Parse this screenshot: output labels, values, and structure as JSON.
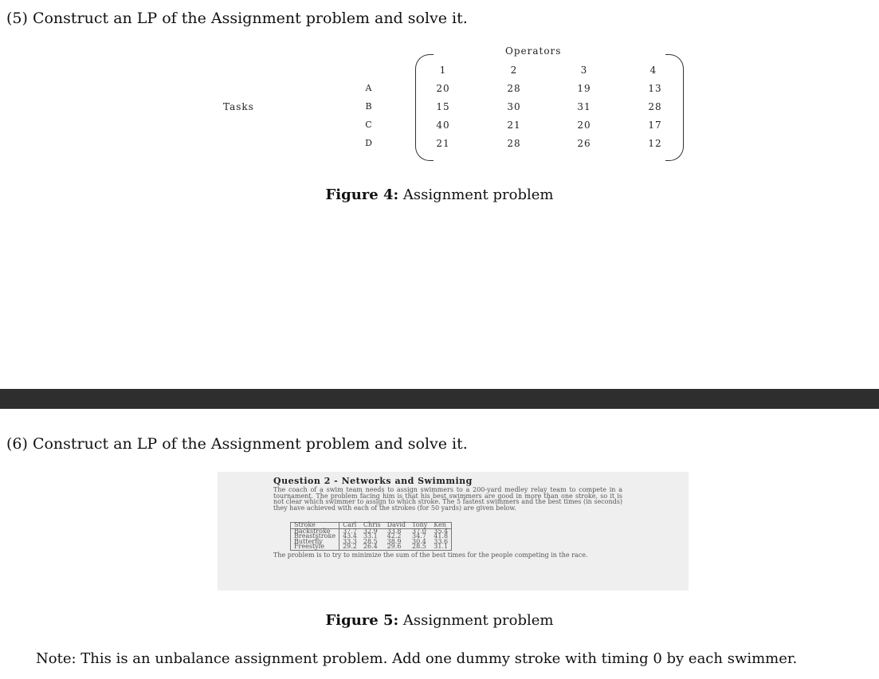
{
  "q5": {
    "heading": "(5) Construct an LP of the Assignment problem and solve it.",
    "figure": {
      "tasks_label": "Tasks",
      "operators_label": "Operators",
      "col_headers": [
        "1",
        "2",
        "3",
        "4"
      ],
      "row_labels": [
        "A",
        "B",
        "C",
        "D"
      ],
      "rows": [
        [
          "20",
          "28",
          "19",
          "13"
        ],
        [
          "15",
          "30",
          "31",
          "28"
        ],
        [
          "40",
          "21",
          "20",
          "17"
        ],
        [
          "21",
          "28",
          "26",
          "12"
        ]
      ]
    },
    "caption_label": "Figure 4:",
    "caption_text": " Assignment problem"
  },
  "q6": {
    "heading": "(6) Construct an LP of the Assignment problem and solve it.",
    "image": {
      "title": "Question 2 - Networks and Swimming",
      "paragraph": "The coach of a swim team needs to assign swimmers to a 200-yard medley relay team to compete in a tournament. The problem facing him is that his best swimmers are good in more than one stroke, so it is not clear which swimmer to assign to which stroke. The 5 fastest swimmers and the best times (in seconds) they have achieved with each of the strokes (for 50 yards) are given below.",
      "table_header": [
        "Stroke",
        "Carl",
        "Chris",
        "David",
        "Tony",
        "Ken"
      ],
      "table_rows": [
        [
          "Backstroke",
          "37.7",
          "32.9",
          "33.8",
          "37.0",
          "35.4"
        ],
        [
          "Breaststroke",
          "43.4",
          "33.1",
          "42.2",
          "34.7",
          "41.8"
        ],
        [
          "Butterfly",
          "33.3",
          "28.5",
          "38.9",
          "30.4",
          "33.6"
        ],
        [
          "Freestyle",
          "29.2",
          "26.4",
          "29.6",
          "28.5",
          "31.1"
        ]
      ],
      "after_text": "The problem is to try to minimize the sum of the best times for the people competing in the race."
    },
    "caption_label": "Figure 5:",
    "caption_text": " Assignment problem",
    "note": "Note: This is an unbalance assignment problem. Add one dummy stroke with timing 0 by each swimmer."
  }
}
